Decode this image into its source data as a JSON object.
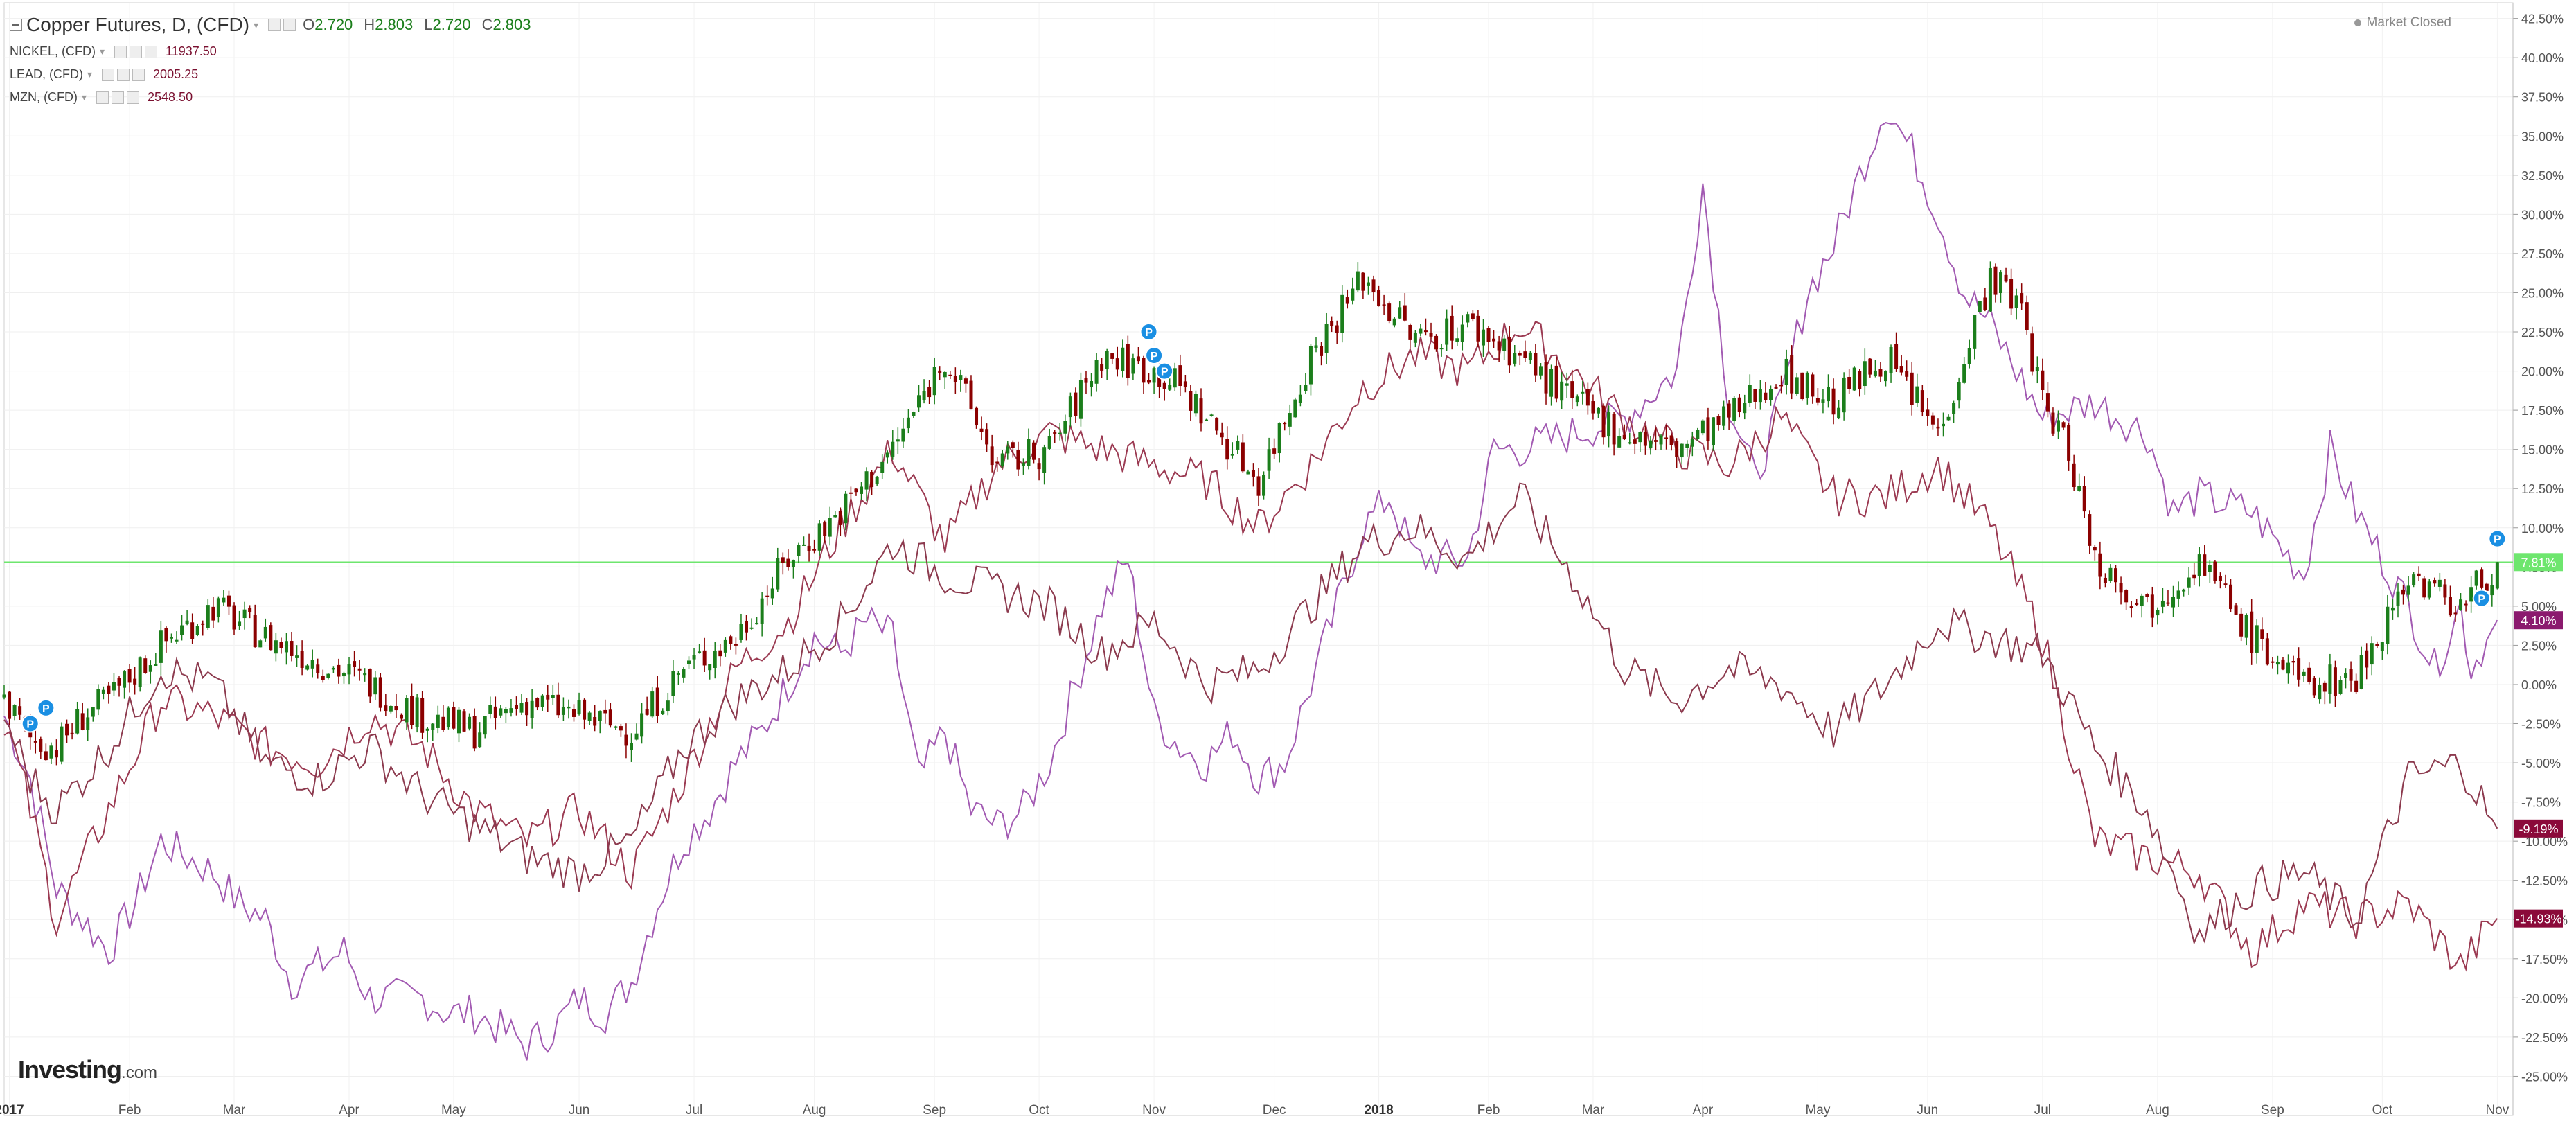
{
  "legend": {
    "main": {
      "title": "Copper Futures, D, (CFD)",
      "open": "2.720",
      "high": "2.803",
      "low": "2.720",
      "close": "2.803"
    },
    "others": [
      {
        "name": "NICKEL, (CFD)",
        "value": "11937.50",
        "color": "#7a1030"
      },
      {
        "name": "LEAD, (CFD)",
        "value": "2005.25",
        "color": "#7a1030"
      },
      {
        "name": "MZN, (CFD)",
        "value": "2548.50",
        "color": "#7a1030"
      }
    ]
  },
  "market_status": "Market Closed",
  "logo": {
    "brand": "Investing",
    "suffix": ".com"
  },
  "chart_data": {
    "type": "line",
    "ylabel": "",
    "ylim": [
      -27.5,
      43.5
    ],
    "y_ticks": [
      "42.50%",
      "40.00%",
      "37.50%",
      "35.00%",
      "32.50%",
      "30.00%",
      "27.50%",
      "25.00%",
      "22.50%",
      "20.00%",
      "17.50%",
      "15.00%",
      "12.50%",
      "10.00%",
      "7.50%",
      "5.00%",
      "2.50%",
      "0.00%",
      "-2.50%",
      "-5.00%",
      "-7.50%",
      "-10.00%",
      "-12.50%",
      "-15.00%",
      "-17.50%",
      "-20.00%",
      "-22.50%",
      "-25.00%"
    ],
    "x_ticks": [
      "2017",
      "Feb",
      "Mar",
      "Apr",
      "May",
      "Jun",
      "Jul",
      "Aug",
      "Sep",
      "Oct",
      "Nov",
      "Dec",
      "2018",
      "Feb",
      "Mar",
      "Apr",
      "May",
      "Jun",
      "Jul",
      "Aug",
      "Sep",
      "Oct",
      "Nov"
    ],
    "x_tick_index": [
      1,
      24,
      44,
      66,
      86,
      110,
      132,
      155,
      178,
      198,
      220,
      243,
      263,
      284,
      304,
      325,
      347,
      368,
      390,
      412,
      434,
      455,
      477
    ],
    "grid": true,
    "series": [
      {
        "name": "Copper Futures",
        "kind": "candlestick",
        "x_points": [
          0,
          5,
          10,
          15,
          20,
          30,
          40,
          50,
          60,
          70,
          80,
          90,
          100,
          110,
          120,
          130,
          140,
          150,
          155,
          160,
          170,
          180,
          190,
          200,
          210,
          220,
          225,
          230,
          240,
          250,
          260,
          265,
          270,
          280,
          290,
          300,
          310,
          320,
          330,
          340,
          350,
          360,
          370,
          380,
          386,
          390,
          395,
          400,
          410,
          420,
          430,
          440,
          450,
          460,
          470,
          477
        ],
        "values": [
          -1,
          -3.5,
          -4,
          -2,
          -1,
          2.5,
          5,
          3,
          1.5,
          0,
          -2,
          -3,
          -1,
          -2,
          -3,
          1,
          3,
          8,
          9.5,
          11,
          15,
          21,
          14,
          15,
          21,
          20,
          19,
          17,
          13,
          21,
          26,
          24,
          22,
          23,
          21,
          18,
          16,
          15,
          17,
          20,
          18,
          21,
          16,
          26,
          24,
          18,
          15,
          8,
          5,
          8,
          3,
          0,
          0.5,
          7,
          5,
          7.81
        ],
        "last_label": "7.81%",
        "up_color": "#1b7e1b",
        "down_color": "#8b0000"
      },
      {
        "name": "NICKEL",
        "kind": "line",
        "x_points": [
          0,
          5,
          10,
          20,
          25,
          30,
          40,
          45,
          50,
          55,
          60,
          65,
          70,
          80,
          85,
          90,
          100,
          105,
          110,
          115,
          120,
          125,
          130,
          135,
          140,
          145,
          150,
          155,
          160,
          165,
          170,
          175,
          180,
          185,
          190,
          195,
          200,
          210,
          215,
          220,
          225,
          230,
          235,
          240,
          245,
          250,
          255,
          260,
          265,
          270,
          280,
          285,
          290,
          300,
          310,
          320,
          325,
          330,
          335,
          340,
          345,
          350,
          360,
          365,
          370,
          375,
          380,
          385,
          390,
          400,
          410,
          415,
          420,
          430,
          440,
          445,
          450,
          460,
          465,
          470,
          472,
          477
        ],
        "values": [
          -2,
          -6,
          -13,
          -17,
          -14,
          -10,
          -12,
          -14,
          -15,
          -19,
          -18,
          -17,
          -20,
          -20,
          -21,
          -21,
          -23,
          -22,
          -20,
          -21,
          -19,
          -14,
          -10,
          -8,
          -5,
          -3,
          0,
          3,
          2,
          4,
          3,
          -6,
          -3,
          -8,
          -9,
          -8,
          -5,
          5,
          8,
          -2,
          -4,
          -5,
          -3,
          -6,
          -5,
          0,
          5,
          10,
          12,
          8,
          8,
          15,
          15,
          16,
          17,
          20,
          32,
          18,
          13,
          18,
          25,
          28,
          37,
          34,
          30,
          25,
          23,
          20,
          17,
          18,
          16,
          11,
          12,
          11,
          7,
          15,
          11,
          5,
          1,
          5,
          1,
          4.1
        ],
        "last_label": "4.10%",
        "color": "#a25ab2",
        "label_bg": "#8b1a6e"
      },
      {
        "name": "LEAD",
        "kind": "line",
        "x_points": [
          0,
          5,
          10,
          20,
          30,
          40,
          50,
          60,
          70,
          80,
          90,
          100,
          110,
          120,
          130,
          140,
          150,
          160,
          170,
          180,
          190,
          200,
          210,
          220,
          230,
          240,
          250,
          260,
          270,
          280,
          290,
          300,
          310,
          320,
          330,
          340,
          350,
          360,
          370,
          380,
          390,
          400,
          410,
          420,
          430,
          440,
          450,
          460,
          470,
          477
        ],
        "values": [
          -2,
          -8,
          -15,
          -8,
          -1,
          -2,
          -4,
          -5,
          -2,
          -4,
          -8,
          -10,
          -8,
          -12,
          -6,
          1,
          4,
          10,
          15,
          9,
          14,
          16,
          15,
          14,
          13,
          10,
          14,
          19,
          21,
          20,
          23,
          20,
          17,
          15,
          14,
          17,
          12,
          12,
          14,
          10,
          3,
          -10,
          -11,
          -12,
          -17,
          -14,
          -15,
          -14,
          -18,
          -14.93
        ],
        "last_label": "-14.93%",
        "color": "#9b3a52",
        "label_bg": "#8b0a3a"
      },
      {
        "name": "MZN",
        "kind": "line",
        "x_points": [
          0,
          5,
          10,
          20,
          30,
          40,
          50,
          60,
          70,
          80,
          90,
          100,
          110,
          120,
          130,
          140,
          150,
          160,
          170,
          180,
          190,
          200,
          210,
          220,
          230,
          240,
          250,
          260,
          270,
          280,
          290,
          300,
          310,
          320,
          330,
          340,
          350,
          360,
          370,
          380,
          390,
          400,
          410,
          415,
          420,
          430,
          440,
          450,
          460,
          470,
          477
        ],
        "values": [
          -2,
          -6,
          -8,
          -4,
          1,
          0,
          -5,
          -6,
          -4,
          -7,
          -9,
          -11,
          -12,
          -10,
          -4,
          -1,
          1,
          4,
          9,
          7,
          6,
          5,
          2,
          4,
          0,
          1,
          5,
          9,
          10,
          8,
          12,
          7,
          1,
          -1,
          1,
          0,
          -3,
          0,
          4,
          3,
          2,
          -4,
          -8,
          -12,
          -16,
          -13,
          -12,
          -15,
          -6,
          -5,
          -9.19
        ],
        "last_label": "-9.19%",
        "color": "#8c3a4e",
        "label_bg": "#8b0a3a"
      }
    ],
    "reference_line": {
      "value": 7.81,
      "color": "#6ee66e"
    },
    "markers": [
      {
        "label": "P",
        "index": 5,
        "value": -2.5
      },
      {
        "label": "P",
        "index": 8,
        "value": -1.5
      },
      {
        "label": "P",
        "index": 219,
        "value": 22.5
      },
      {
        "label": "P",
        "index": 220,
        "value": 21
      },
      {
        "label": "P",
        "index": 222,
        "value": 20
      },
      {
        "label": "P",
        "index": 474,
        "value": 5.5
      },
      {
        "label": "P",
        "index": 477,
        "value": 9.3
      }
    ]
  }
}
